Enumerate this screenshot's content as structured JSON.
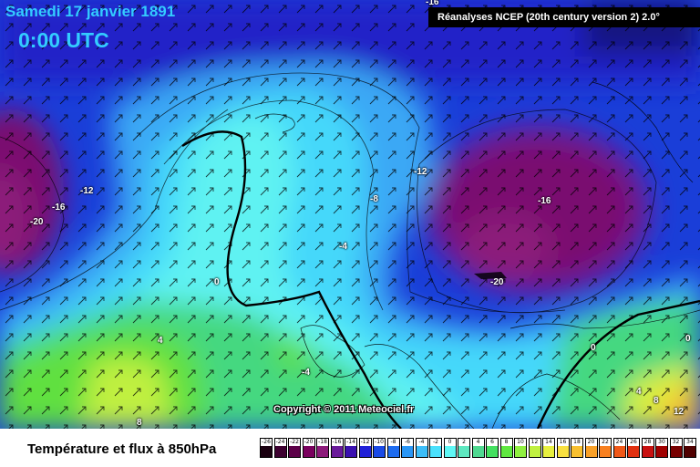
{
  "header": {
    "date": "Samedi 17 janvier 1891",
    "time": "0:00 UTC",
    "source": "Réanalyses NCEP (20th century version 2) 2.0°"
  },
  "footer": {
    "copyright": "Copyright © 2011 Meteociel.fr",
    "legend_title": "Température et flux à 850hPa"
  },
  "isotherm_labels": [
    "-16",
    "-12",
    "-16",
    "-20",
    "0",
    "4",
    "8",
    "-12",
    "-8",
    "-4",
    "-16",
    "-20",
    "-4",
    "0",
    "0",
    "4",
    "8",
    "12"
  ],
  "scale": {
    "values": [
      "-26",
      "-24",
      "-22",
      "-20",
      "-18",
      "-16",
      "-14",
      "-12",
      "-10",
      "-8",
      "-6",
      "-4",
      "-2",
      "0",
      "2",
      "4",
      "6",
      "8",
      "10",
      "12",
      "14",
      "16",
      "18",
      "20",
      "22",
      "24",
      "26",
      "28",
      "30",
      "32",
      "34"
    ],
    "colors": [
      "#1a0010",
      "#3d0030",
      "#5c0048",
      "#7a005e",
      "#8c1a7a",
      "#6a1a9a",
      "#3a10b0",
      "#2020d8",
      "#1a4ae6",
      "#1e6cf0",
      "#2a96f5",
      "#3cbdf8",
      "#4ae0fc",
      "#5ff7f5",
      "#5ee8c0",
      "#4fd890",
      "#44e060",
      "#60e840",
      "#90f040",
      "#c0f040",
      "#e8f040",
      "#f8e040",
      "#f8c030",
      "#f8a028",
      "#f88020",
      "#f05818",
      "#e03010",
      "#c81010",
      "#a00000",
      "#780000",
      "#500000"
    ]
  },
  "colors": {
    "header_text": "#33ccff",
    "label_text": "#ffffff"
  }
}
